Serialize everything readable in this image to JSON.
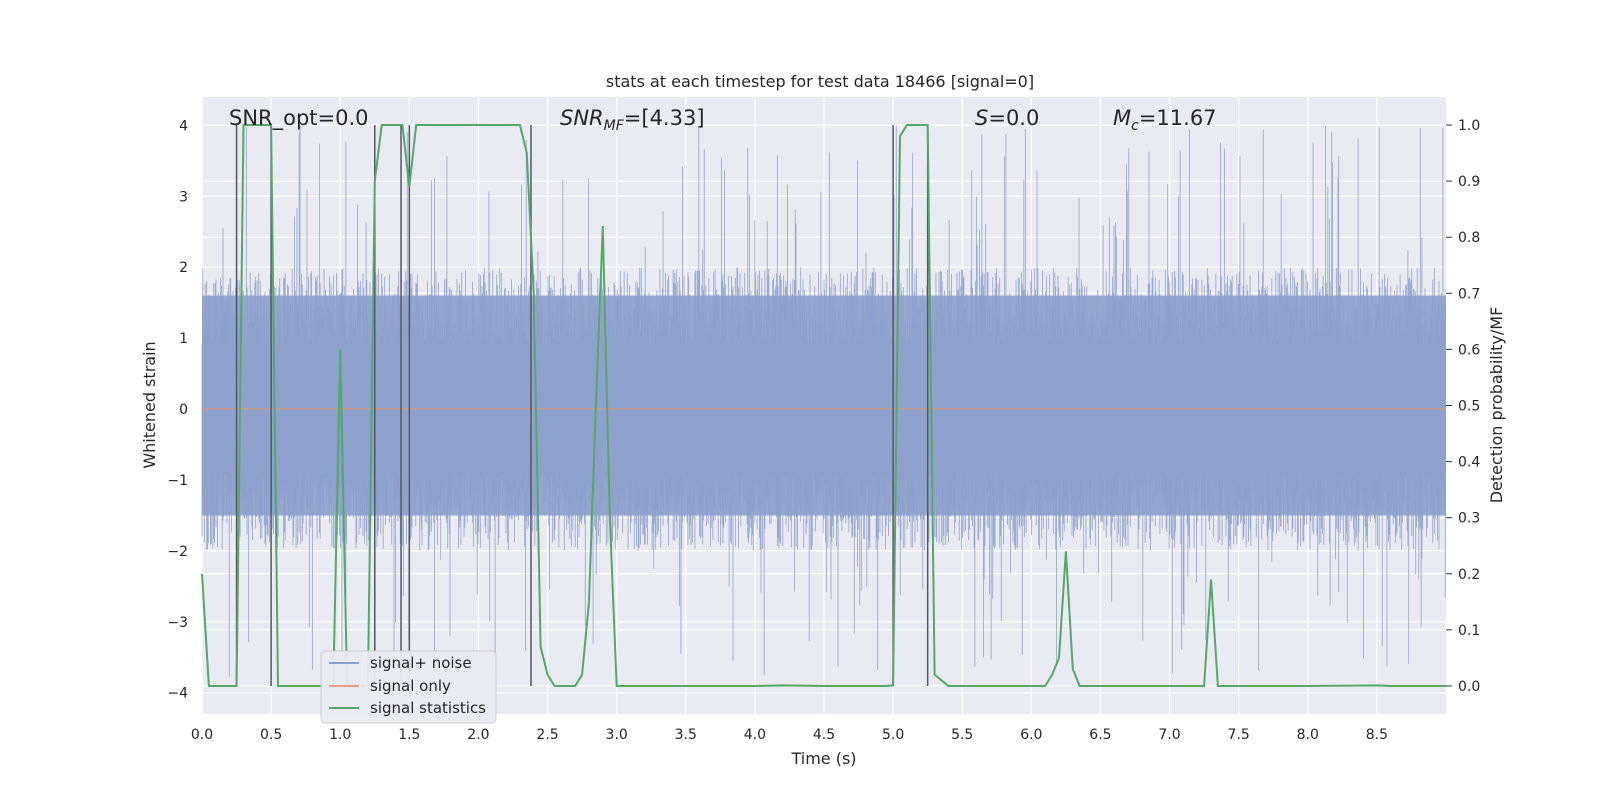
{
  "chart_data": {
    "type": "line",
    "title": "stats at each timestep for test data 18466 [signal=0]",
    "xlabel": "Time (s)",
    "ylabel_left": "Whitened strain",
    "ylabel_right": "Detection probability/MF",
    "xlim": [
      0.0,
      9.0
    ],
    "ylim_left": [
      -4.3,
      4.4
    ],
    "ylim_right": [
      -0.05,
      1.05
    ],
    "grid": true,
    "legend_position": "lower-left",
    "x_ticks": [
      "0.0",
      "0.5",
      "1.0",
      "1.5",
      "2.0",
      "2.5",
      "3.0",
      "3.5",
      "4.0",
      "4.5",
      "5.0",
      "5.5",
      "6.0",
      "6.5",
      "7.0",
      "7.5",
      "8.0",
      "8.5"
    ],
    "y_ticks_left": [
      "−4",
      "−3",
      "−2",
      "−1",
      "0",
      "1",
      "2",
      "3",
      "4"
    ],
    "y_ticks_right": [
      "0.0",
      "0.1",
      "0.2",
      "0.3",
      "0.4",
      "0.5",
      "0.6",
      "0.7",
      "0.8",
      "0.9",
      "1.0"
    ],
    "annotations": [
      {
        "id": "snr_opt",
        "text": "SNR_opt=0.0"
      },
      {
        "id": "snr_mf",
        "text": "SNR_MF=[4.33]"
      },
      {
        "id": "s",
        "text": "S=0.0"
      },
      {
        "id": "mc",
        "text": "M_c=11.67"
      }
    ],
    "series": [
      {
        "name": "signal+ noise",
        "color": "#8da0cb",
        "axis": "left",
        "description_values": {
          "typical_range": [
            -2.0,
            2.0
          ],
          "peak_max": 4.0,
          "peak_min": -3.9
        }
      },
      {
        "name": "signal only",
        "color": "#e8a07f",
        "axis": "left",
        "y_constant": 0.0
      },
      {
        "name": "signal statistics",
        "color": "#55a868",
        "axis": "right",
        "x": [
          0.0,
          0.05,
          0.1,
          0.15,
          0.2,
          0.25,
          0.3,
          0.35,
          0.4,
          0.45,
          0.5,
          0.55,
          0.6,
          0.65,
          0.7,
          0.75,
          0.8,
          0.85,
          0.9,
          0.95,
          1.0,
          1.05,
          1.1,
          1.15,
          1.2,
          1.25,
          1.3,
          1.35,
          1.4,
          1.45,
          1.5,
          1.55,
          1.6,
          1.65,
          1.7,
          1.75,
          1.8,
          1.85,
          1.9,
          1.95,
          2.0,
          2.05,
          2.1,
          2.15,
          2.2,
          2.25,
          2.3,
          2.35,
          2.4,
          2.45,
          2.5,
          2.55,
          2.6,
          2.65,
          2.7,
          2.75,
          2.8,
          2.85,
          2.9,
          2.95,
          3.0,
          3.05,
          3.1,
          3.5,
          4.0,
          4.2,
          4.5,
          4.9,
          4.95,
          5.0,
          5.05,
          5.1,
          5.15,
          5.2,
          5.25,
          5.3,
          5.35,
          5.4,
          5.45,
          6.0,
          6.1,
          6.15,
          6.2,
          6.25,
          6.3,
          6.35,
          6.4,
          7.0,
          7.2,
          7.25,
          7.3,
          7.35,
          7.4,
          7.45,
          8.0,
          8.5,
          8.6,
          8.9,
          9.0
        ],
        "y": [
          0.2,
          0.0,
          0.0,
          0.0,
          0.0,
          0.0,
          1.0,
          1.0,
          1.0,
          1.0,
          1.0,
          0.0,
          0.0,
          0.0,
          0.0,
          0.0,
          0.0,
          0.0,
          0.0,
          0.0,
          0.6,
          0.0,
          0.0,
          0.0,
          0.0,
          0.9,
          1.0,
          1.0,
          1.0,
          1.0,
          0.89,
          1.0,
          1.0,
          1.0,
          1.0,
          1.0,
          1.0,
          1.0,
          1.0,
          1.0,
          1.0,
          1.0,
          1.0,
          1.0,
          1.0,
          1.0,
          1.0,
          0.95,
          0.7,
          0.07,
          0.02,
          0.0,
          0.0,
          0.0,
          0.0,
          0.02,
          0.15,
          0.5,
          0.82,
          0.3,
          0.0,
          0.0,
          0.0,
          0.0,
          0.0,
          0.001,
          0.0,
          0.0,
          0.0,
          0.001,
          0.98,
          1.0,
          1.0,
          1.0,
          1.0,
          0.02,
          0.01,
          0.0,
          0.0,
          0.0,
          0.0,
          0.02,
          0.05,
          0.24,
          0.03,
          0.0,
          0.0,
          0.0,
          0.0,
          0.0,
          0.19,
          0.0,
          0.0,
          0.0,
          0.0,
          0.001,
          0.0,
          0.0,
          0.0
        ]
      }
    ],
    "vertical_markers_x": [
      0.25,
      0.5,
      1.25,
      1.44,
      1.5,
      2.38,
      5.0,
      5.25
    ]
  }
}
